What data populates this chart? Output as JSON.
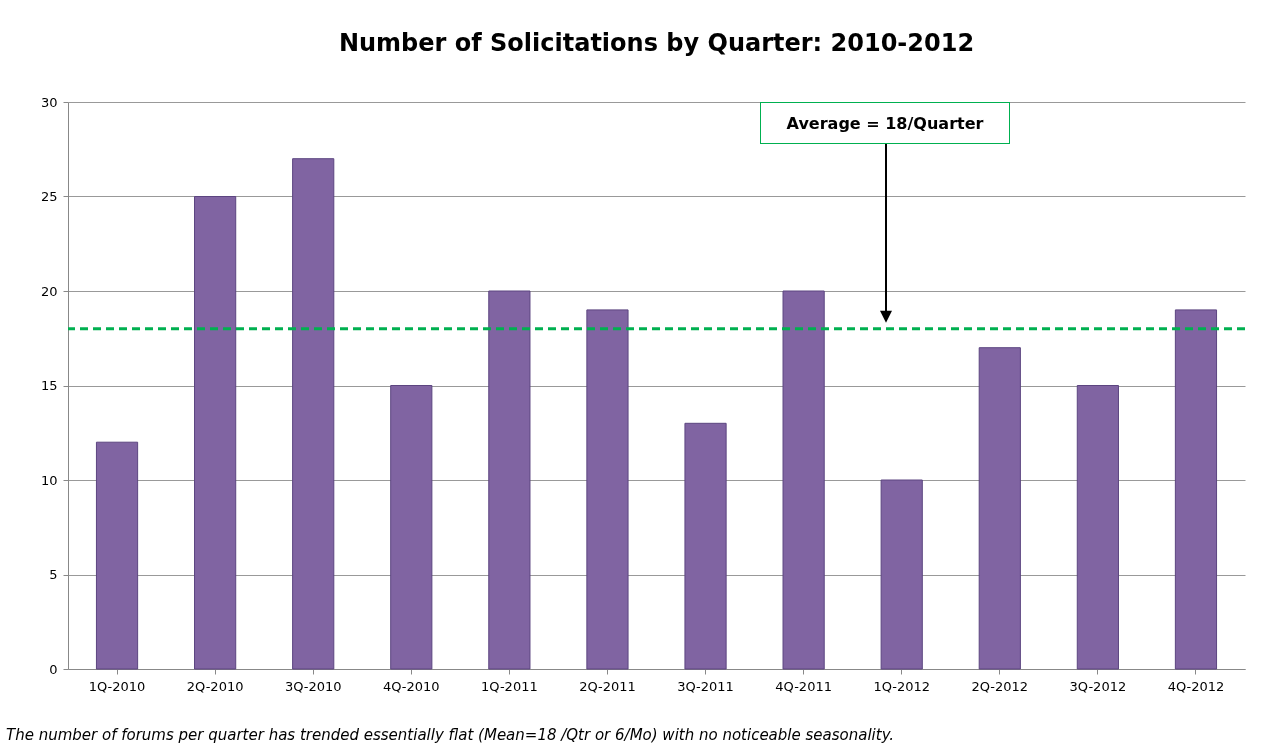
{
  "chart_data": {
    "type": "bar",
    "title": "Number of Solicitations by Quarter: 2010-2012",
    "categories": [
      "1Q-2010",
      "2Q-2010",
      "3Q-2010",
      "4Q-2010",
      "1Q-2011",
      "2Q-2011",
      "3Q-2011",
      "4Q-2011",
      "1Q-2012",
      "2Q-2012",
      "3Q-2012",
      "4Q-2012"
    ],
    "values": [
      12,
      25,
      27,
      15,
      20,
      19,
      13,
      20,
      10,
      17,
      15,
      19
    ],
    "color": "#8064a2",
    "ylim": [
      0,
      30
    ],
    "yticks": [
      0,
      5,
      10,
      15,
      20,
      25,
      30
    ],
    "grid": "y",
    "ref_lines": [
      {
        "axis": "y",
        "value": 18,
        "color": "#00b050",
        "line_style": "dashed"
      }
    ],
    "annotations": [
      "Average = 18/Quarter",
      "The number of forums per quarter has trended essentially flat (Mean=18 /Qtr or 6/Mo) with no noticeable seasonality."
    ]
  }
}
